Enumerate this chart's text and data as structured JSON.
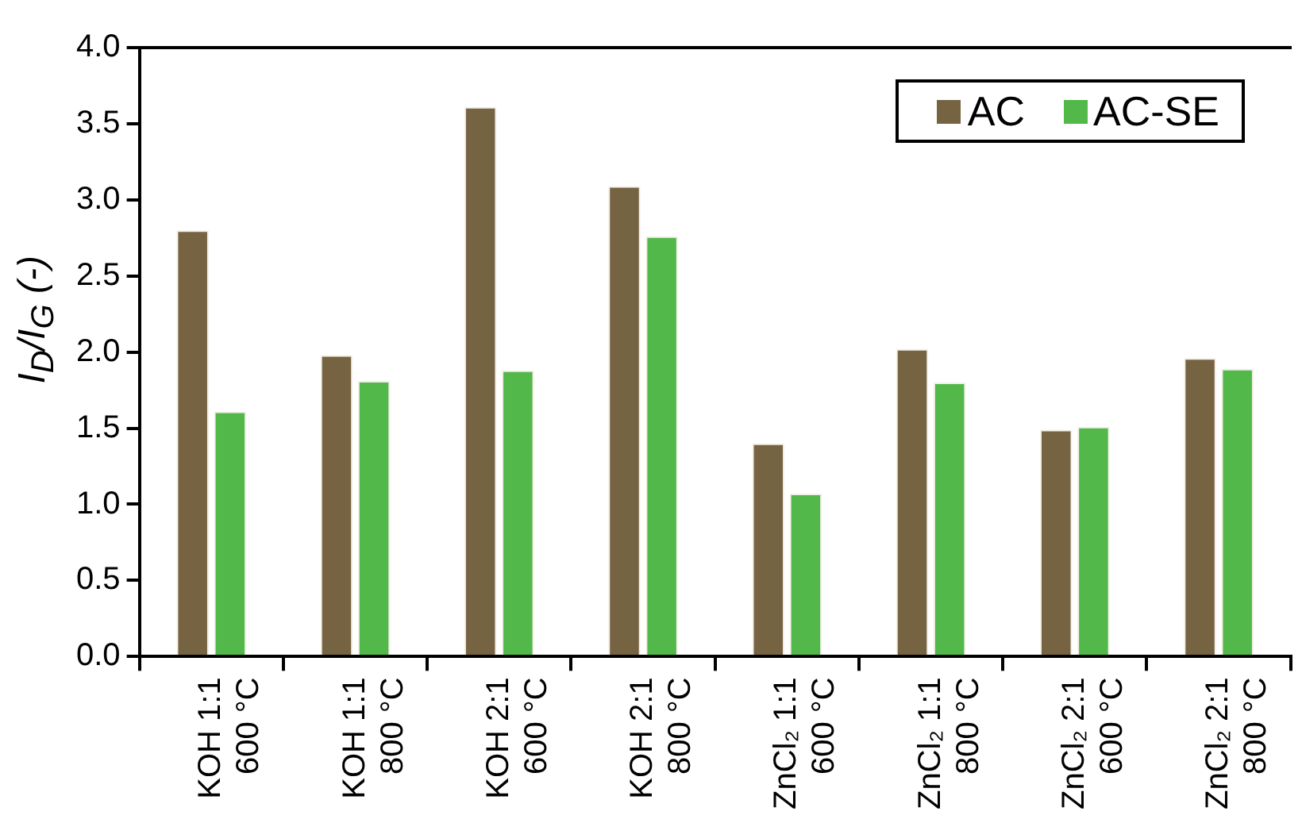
{
  "chart_data": {
    "type": "bar",
    "ylabel": "I$_{D}$/I$_{G}$ (-)",
    "categories": [
      "KOH 1:1\n600 °C",
      "KOH 1:1\n800 °C",
      "KOH 2:1\n600 °C",
      "KOH 2:1\n800 °C",
      "ZnCl₂ 1:1\n600 °C",
      "ZnCl₂ 1:1\n800 °C",
      "ZnCl₂ 2:1\n600 °C",
      "ZnCl₂ 2:1\n800 °C"
    ],
    "series": [
      {
        "name": "AC",
        "color": "#766342",
        "values": [
          2.8,
          1.98,
          3.61,
          3.09,
          1.4,
          2.02,
          1.49,
          1.96
        ]
      },
      {
        "name": "AC-SE",
        "color": "#51b849",
        "values": [
          1.61,
          1.81,
          1.88,
          2.76,
          1.07,
          1.8,
          1.51,
          1.89
        ]
      }
    ],
    "ylim": [
      0,
      4.0
    ],
    "yticks": [
      {
        "value": 0,
        "label": "0.0"
      },
      {
        "value": 0.5,
        "label": "0.5"
      },
      {
        "value": 1,
        "label": "1.0"
      },
      {
        "value": 1.5,
        "label": "1.5"
      },
      {
        "value": 2,
        "label": "2.0"
      },
      {
        "value": 2.5,
        "label": "2.5"
      },
      {
        "value": 3,
        "label": "3.0"
      },
      {
        "value": 3.5,
        "label": "3.5"
      },
      {
        "value": 4,
        "label": "4.0"
      }
    ],
    "grid": false,
    "legend": "top right"
  }
}
